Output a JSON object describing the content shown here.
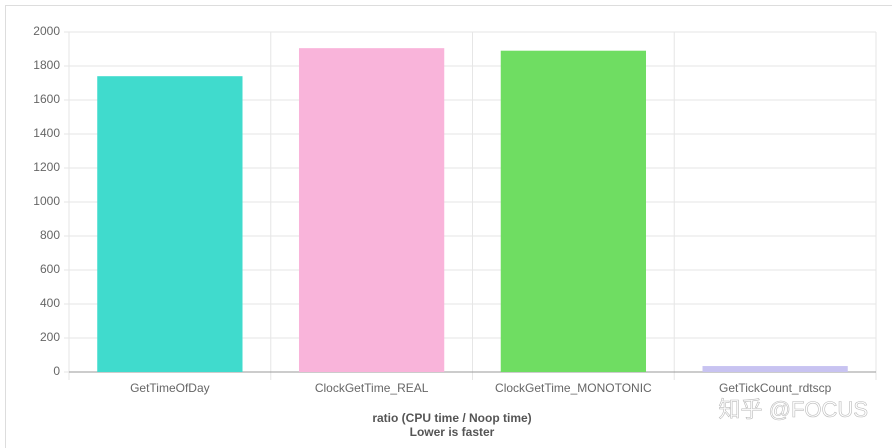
{
  "chart_data": {
    "type": "bar",
    "x_label": [
      "ratio (CPU time / Noop time)",
      "Lower is faster"
    ],
    "categories": [
      "GetTimeOfDay",
      "ClockGetTime_REAL",
      "ClockGetTime_MONOTONIC",
      "GetTickCount_rdtscp"
    ],
    "values": [
      1740,
      1905,
      1890,
      35
    ],
    "colors": [
      "#40dbcd",
      "#f9b4da",
      "#6fdd62",
      "#c8c3f1"
    ],
    "ylim": [
      0,
      2000
    ],
    "yticks": [
      0,
      200,
      400,
      600,
      800,
      1000,
      1200,
      1400,
      1600,
      1800,
      2000
    ],
    "grid": true
  },
  "watermark": "知乎 @FOCUS"
}
